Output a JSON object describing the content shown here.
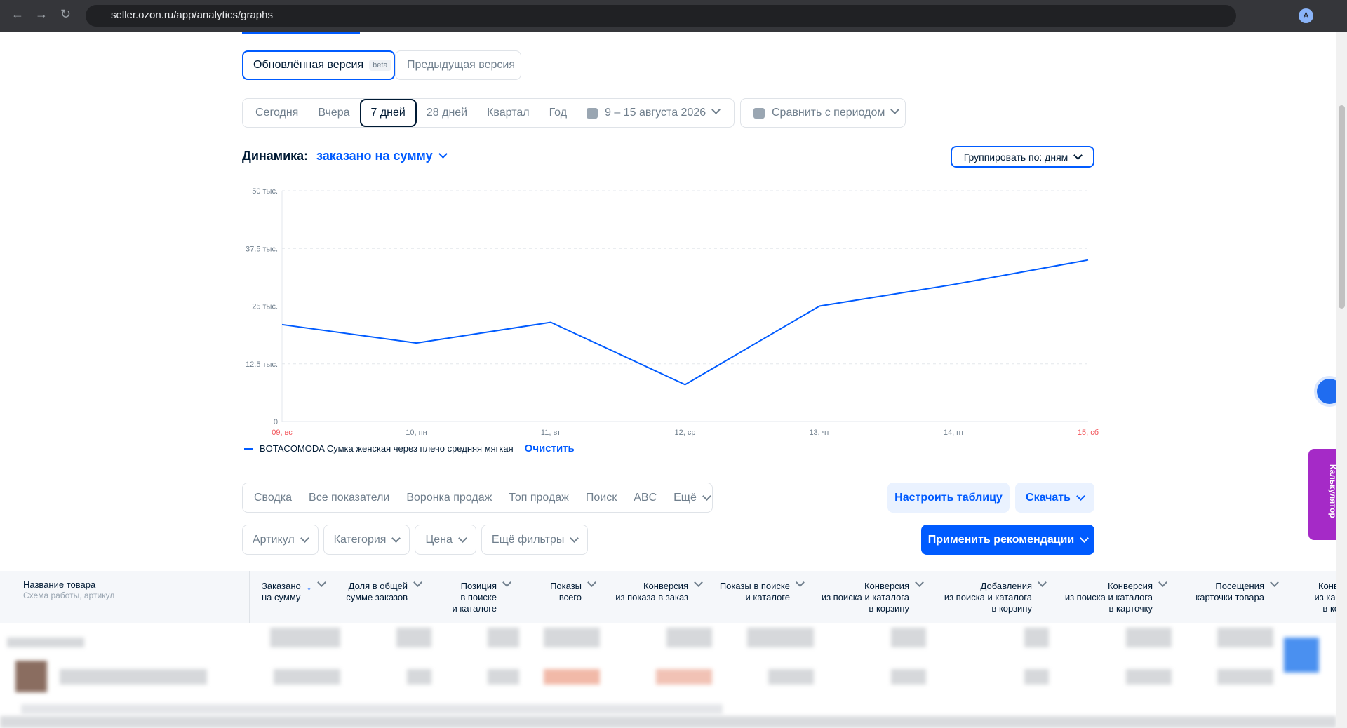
{
  "browser": {
    "url": "seller.ozon.ru/app/analytics/graphs",
    "avatar": "A"
  },
  "version_toggle": {
    "current": "Обновлённая версия",
    "badge": "beta",
    "previous": "Предыдущая версия"
  },
  "periods": [
    "Сегодня",
    "Вчера",
    "7 дней",
    "28 дней",
    "Квартал",
    "Год"
  ],
  "active_period": 2,
  "date_range": "9 – 15 августа 2026",
  "compare": "Сравнить с периодом",
  "chart_header": {
    "label": "Динамика:",
    "metric": "заказано на сумму",
    "group_by": "Группировать по: дням"
  },
  "chart_data": {
    "type": "line",
    "categories": [
      "09, вс",
      "10, пн",
      "11, вт",
      "12, ср",
      "13, чт",
      "14, пт",
      "15, сб"
    ],
    "category_colors": [
      "#f2555a",
      "#707f8d",
      "#707f8d",
      "#707f8d",
      "#707f8d",
      "#707f8d",
      "#f2555a"
    ],
    "series": [
      {
        "name": "BOTACOMODA Сумка женская через плечо средняя мягкая",
        "color": "#005bff",
        "values": [
          21,
          17,
          21.5,
          8,
          25,
          29.7,
          35
        ]
      }
    ],
    "ylim": [
      0,
      50
    ],
    "yticks": [
      0,
      {
        "value": 12.5,
        "label": "12.5 тыс."
      },
      {
        "value": 25,
        "label": "25 тыс."
      },
      {
        "value": 37.5,
        "label": "37.5 тыс."
      },
      {
        "value": 50,
        "label": "50 тыс."
      }
    ],
    "grid": true
  },
  "legend_clear": "Очистить",
  "report_tabs": [
    "Сводка",
    "Все показатели",
    "Воронка продаж",
    "Топ продаж",
    "Поиск",
    "ABC",
    "Ещё"
  ],
  "table_settings": "Настроить таблицу",
  "download": "Скачать",
  "filters": [
    "Артикул",
    "Категория",
    "Цена",
    "Ещё фильтры"
  ],
  "apply": "Применить рекомендации",
  "table": {
    "name_column": {
      "title": "Название товара",
      "subtitle": "Схема работы, артикул"
    },
    "columns": [
      "Заказано\nна сумму",
      "Доля в общей\nсумме заказов",
      "Позиция\nв поиске\nи каталоге",
      "Показы\nвсего",
      "Конверсия\nиз показа в заказ",
      "Показы в поиске\nи каталоге",
      "Конверсия\nиз поиска и каталога\nв корзину",
      "Добавления\nиз поиска и каталога\nв корзину",
      "Конверсия\nиз поиска и каталога\nв карточку",
      "Посещения\nкарточки товара",
      "Конверсия\nиз карточки\nв корзину"
    ]
  },
  "side_tab": "Калькулятор"
}
